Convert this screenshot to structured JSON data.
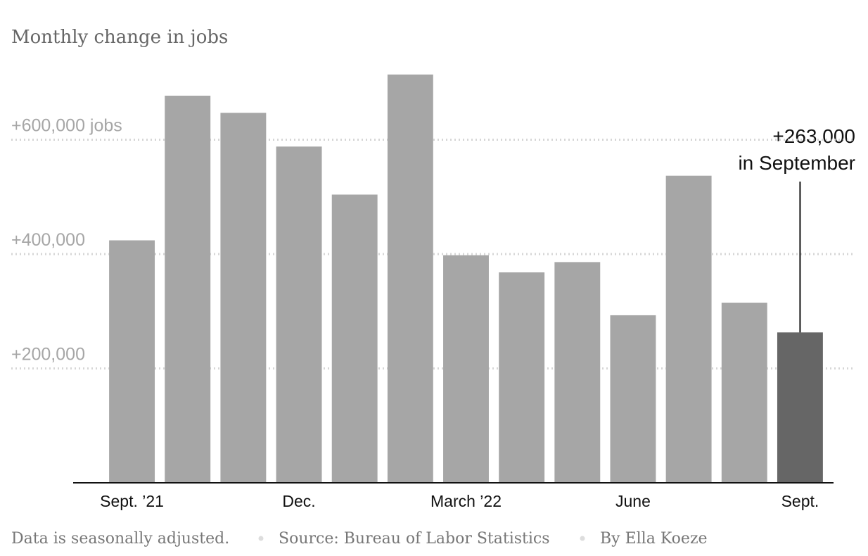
{
  "chart_data": {
    "type": "bar",
    "title": "Monthly change in jobs",
    "categories": [
      "Sept. ’21",
      null,
      null,
      "Dec.",
      null,
      null,
      "March ’22",
      null,
      null,
      "June",
      null,
      null,
      "Sept."
    ],
    "values": [
      424000,
      677000,
      647000,
      588000,
      504000,
      714000,
      398000,
      368000,
      386000,
      293000,
      537000,
      315000,
      263000
    ],
    "colors": [
      "#a6a6a6",
      "#a6a6a6",
      "#a6a6a6",
      "#a6a6a6",
      "#a6a6a6",
      "#a6a6a6",
      "#a6a6a6",
      "#a6a6a6",
      "#a6a6a6",
      "#a6a6a6",
      "#a6a6a6",
      "#a6a6a6",
      "#666666"
    ],
    "ylim": [
      0,
      720000
    ],
    "yticks": [
      {
        "value": 200000,
        "label": "+200,000"
      },
      {
        "value": 400000,
        "label": "+400,000"
      },
      {
        "value": 600000,
        "label": "+600,000 jobs"
      }
    ],
    "grid": true,
    "annotation": [
      "+263,000",
      "in September"
    ],
    "notes": [
      "Data is seasonally adjusted.",
      "Source: Bureau of Labor Statistics",
      "By Ella Koeze"
    ]
  }
}
